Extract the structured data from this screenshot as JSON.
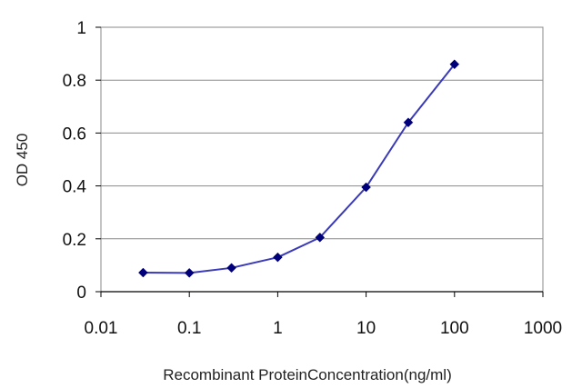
{
  "chart_data": {
    "type": "line",
    "title": "",
    "xlabel": "Recombinant ProteinConcentration(ng/ml)",
    "ylabel": "OD 450",
    "x_scale": "log",
    "xlim": [
      0.01,
      1000
    ],
    "ylim": [
      0,
      1
    ],
    "x_ticks": [
      "0.01",
      "0.1",
      "1",
      "10",
      "100",
      "1000"
    ],
    "y_ticks": [
      "0",
      "0.2",
      "0.4",
      "0.6",
      "0.8",
      "1"
    ],
    "grid": "horizontal",
    "legend": "none",
    "series": [
      {
        "color": "#3a3ab8",
        "marker": "diamond",
        "marker_color": "#00007a",
        "x": [
          0.03,
          0.1,
          0.3,
          1,
          3,
          10,
          30,
          100
        ],
        "y": [
          0.072,
          0.071,
          0.09,
          0.13,
          0.205,
          0.395,
          0.64,
          0.86
        ]
      }
    ]
  }
}
